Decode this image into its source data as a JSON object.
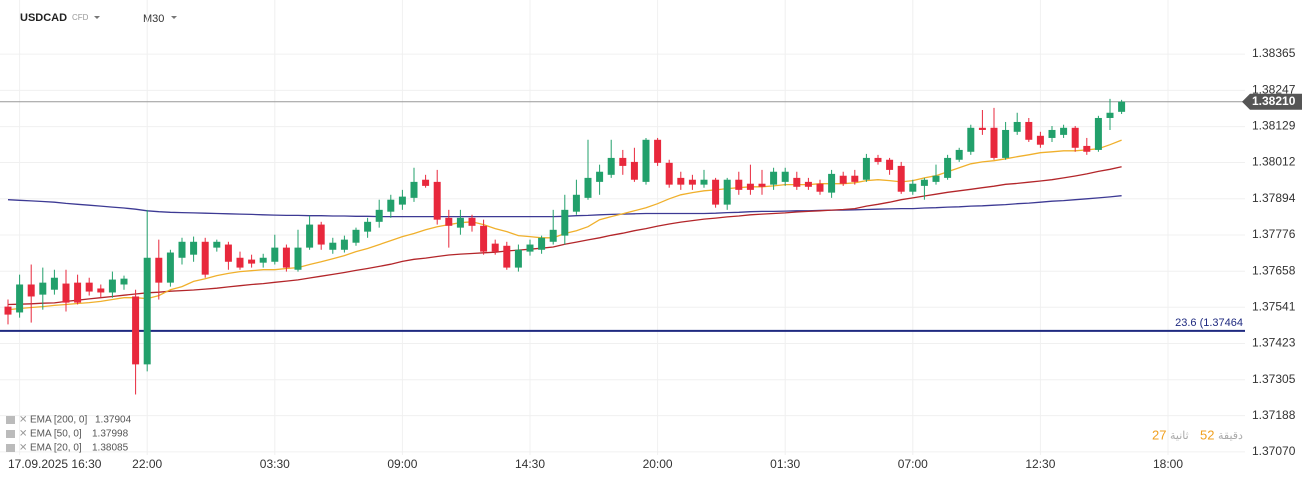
{
  "header": {
    "symbol": "USDCAD",
    "market": "CFD",
    "timeframe": "M30"
  },
  "countdown": {
    "minutes": "27",
    "minutes_unit": "دقيقة",
    "seconds": "52",
    "seconds_unit": "ثانية"
  },
  "chart_data": {
    "type": "candlestick",
    "categories": [
      null,
      "17.09.2025 16:30",
      null,
      null,
      null,
      null,
      null,
      null,
      null,
      null,
      null,
      null,
      "22:00",
      null,
      null,
      null,
      null,
      null,
      null,
      null,
      null,
      null,
      null,
      "03:30",
      null,
      null,
      null,
      null,
      null,
      null,
      null,
      null,
      null,
      null,
      "09:00",
      null,
      null,
      null,
      null,
      null,
      null,
      null,
      null,
      null,
      null,
      "14:30",
      null,
      null,
      null,
      null,
      null,
      null,
      null,
      null,
      null,
      null,
      "20:00",
      null,
      null,
      null,
      null,
      null,
      null,
      null,
      null,
      null,
      null,
      "01:30",
      null,
      null,
      null,
      null,
      null,
      null,
      null,
      null,
      null,
      null,
      "07:00",
      null,
      null,
      null,
      null,
      null,
      null,
      null,
      null,
      null,
      null,
      "12:30",
      null,
      null,
      null,
      null,
      null,
      null,
      null,
      null,
      null,
      null,
      "18:00"
    ],
    "open": [
      1.37543,
      1.37524,
      1.37615,
      1.37582,
      1.37598,
      1.37618,
      1.37621,
      1.37621,
      1.37602,
      1.37589,
      1.37615,
      1.37576,
      1.37355,
      1.37702,
      1.37621,
      1.37702,
      1.37712,
      1.37754,
      1.37735,
      1.37745,
      1.37702,
      1.37696,
      1.37686,
      1.37689,
      1.37735,
      1.37663,
      1.37735,
      1.3781,
      1.37728,
      1.37728,
      1.37751,
      1.37787,
      1.37819,
      1.37852,
      1.37875,
      1.37897,
      1.37956,
      1.37949,
      1.37832,
      1.378,
      1.37832,
      1.37806,
      1.37748,
      1.37741,
      1.3767,
      1.37722,
      1.37728,
      1.37754,
      1.37774,
      1.37852,
      1.37897,
      1.37949,
      1.37972,
      1.38027,
      1.38014,
      1.37949,
      1.38086,
      1.38011,
      1.37962,
      1.37956,
      1.3794,
      1.37956,
      1.37875,
      1.37956,
      1.37943,
      1.37943,
      1.3794,
      1.37949,
      1.37962,
      1.37949,
      1.37943,
      1.37914,
      1.37969,
      1.37969,
      1.37956,
      1.38027,
      1.38021,
      1.38001,
      1.37917,
      1.37936,
      1.37949,
      1.37962,
      1.38021,
      1.38047,
      1.38125,
      1.38125,
      1.38027,
      1.38112,
      1.38144,
      1.38099,
      1.38092,
      1.38102,
      1.38125,
      1.38066,
      1.38053,
      1.38157,
      1.38177,
      null,
      null,
      null,
      null
    ],
    "high": [
      1.37566,
      1.37647,
      1.3768,
      1.3767,
      1.37663,
      1.37663,
      1.37647,
      1.37637,
      1.37615,
      1.37657,
      1.37644,
      1.37598,
      1.37858,
      1.37761,
      1.37728,
      1.37767,
      1.37771,
      1.37767,
      1.37761,
      1.37754,
      1.37722,
      1.37712,
      1.37715,
      1.37777,
      1.37745,
      1.37793,
      1.37839,
      1.37819,
      1.37767,
      1.37774,
      1.378,
      1.37832,
      1.37891,
      1.37907,
      1.37923,
      1.37995,
      1.37972,
      1.37988,
      1.37858,
      1.37858,
      1.37842,
      1.37826,
      1.37761,
      1.37754,
      1.37745,
      1.37761,
      1.37774,
      1.37858,
      1.37907,
      1.37956,
      1.38086,
      1.38005,
      1.38086,
      1.38053,
      1.3806,
      1.38092,
      1.38092,
      1.38021,
      1.37982,
      1.37972,
      1.37988,
      1.37962,
      1.37962,
      1.37982,
      1.38005,
      1.37988,
      1.37995,
      1.37995,
      1.37982,
      1.37962,
      1.37956,
      1.37988,
      1.37982,
      1.37988,
      1.3804,
      1.38037,
      1.38027,
      1.38014,
      1.37956,
      1.37962,
      1.38005,
      1.38037,
      1.3806,
      1.38135,
      1.38183,
      1.3819,
      1.38144,
      1.38174,
      1.38157,
      1.38112,
      1.38131,
      1.38135,
      1.38131,
      1.38092,
      1.38164,
      1.38219,
      1.38216,
      null,
      null,
      null,
      null
    ],
    "low": [
      1.37485,
      1.37507,
      1.37491,
      1.37533,
      1.37582,
      1.37527,
      1.3755,
      1.37579,
      1.37572,
      1.37572,
      1.37598,
      1.37257,
      1.37332,
      1.37566,
      1.37608,
      1.3768,
      1.37689,
      1.37637,
      1.37722,
      1.37663,
      1.37663,
      1.3767,
      1.3767,
      1.3768,
      1.37657,
      1.37657,
      1.37728,
      1.37728,
      1.37715,
      1.37719,
      1.37741,
      1.37767,
      1.378,
      1.37832,
      1.37858,
      1.37884,
      1.3793,
      1.3781,
      1.37735,
      1.37777,
      1.37787,
      1.37712,
      1.37712,
      1.37663,
      1.37657,
      1.37709,
      1.37715,
      1.37745,
      1.37745,
      1.37842,
      1.37891,
      1.37907,
      1.37962,
      1.37972,
      1.37949,
      1.3794,
      1.38001,
      1.3793,
      1.37923,
      1.37923,
      1.3793,
      1.37865,
      1.37858,
      1.37907,
      1.37907,
      1.37907,
      1.37923,
      1.37936,
      1.37923,
      1.37923,
      1.37907,
      1.37897,
      1.37936,
      1.3794,
      1.37949,
      1.38005,
      1.37972,
      1.3791,
      1.37907,
      1.37891,
      1.3794,
      1.37956,
      1.38014,
      1.38037,
      1.38102,
      1.38021,
      1.38021,
      1.38102,
      1.38079,
      1.3806,
      1.38079,
      1.38092,
      1.38047,
      1.38037,
      1.38047,
      1.38118,
      1.3817,
      null,
      null,
      null,
      null
    ],
    "close": [
      1.37517,
      1.37615,
      1.37576,
      1.37621,
      1.37637,
      1.37556,
      1.37556,
      1.37592,
      1.37589,
      1.37631,
      1.37634,
      1.37355,
      1.37702,
      1.37621,
      1.37719,
      1.37754,
      1.37754,
      1.37647,
      1.37754,
      1.37689,
      1.3767,
      1.37683,
      1.37702,
      1.37735,
      1.3767,
      1.37735,
      1.3781,
      1.37745,
      1.37751,
      1.37761,
      1.37793,
      1.37819,
      1.37858,
      1.37891,
      1.37901,
      1.37949,
      1.37936,
      1.37826,
      1.37806,
      1.37832,
      1.37806,
      1.37722,
      1.37722,
      1.3767,
      1.37728,
      1.37745,
      1.37767,
      1.37793,
      1.37858,
      1.37907,
      1.37962,
      1.37982,
      1.38027,
      1.38001,
      1.37956,
      1.38086,
      1.38011,
      1.3794,
      1.3794,
      1.3794,
      1.37956,
      1.37875,
      1.37956,
      1.37923,
      1.37923,
      1.37933,
      1.37982,
      1.37982,
      1.37933,
      1.37933,
      1.37917,
      1.37975,
      1.37943,
      1.37949,
      1.38027,
      1.38014,
      1.37988,
      1.37917,
      1.37943,
      1.37956,
      1.37969,
      1.38027,
      1.38053,
      1.38125,
      1.38118,
      1.38027,
      1.38118,
      1.38144,
      1.38086,
      1.3807,
      1.38118,
      1.38125,
      1.3806,
      1.38047,
      1.38157,
      1.38174,
      1.3821,
      null,
      null,
      null,
      null
    ],
    "up_color": "#22a06b",
    "down_color": "#e8283c",
    "series": [
      {
        "name": "EMA [200, 0]",
        "color": "#3d3a94",
        "values": [
          1.37891,
          1.37889,
          1.37887,
          1.37885,
          1.37883,
          1.37879,
          1.37876,
          1.37873,
          1.3787,
          1.37867,
          1.37864,
          1.3786,
          1.37855,
          1.37852,
          1.3785,
          1.37849,
          1.37848,
          1.37847,
          1.37846,
          1.37845,
          1.37844,
          1.37843,
          1.37842,
          1.37841,
          1.3784,
          1.3784,
          1.37839,
          1.37839,
          1.37838,
          1.37838,
          1.37837,
          1.37837,
          1.37836,
          1.37836,
          1.37836,
          1.37836,
          1.37836,
          1.37836,
          1.37836,
          1.37836,
          1.37836,
          1.37836,
          1.37836,
          1.37836,
          1.37836,
          1.37836,
          1.37836,
          1.37836,
          1.37837,
          1.37839,
          1.3784,
          1.37842,
          1.37843,
          1.37844,
          1.37845,
          1.37846,
          1.37846,
          1.37846,
          1.37846,
          1.37846,
          1.37846,
          1.37847,
          1.37849,
          1.3785,
          1.37852,
          1.37853,
          1.37853,
          1.37854,
          1.37855,
          1.37855,
          1.37856,
          1.37857,
          1.37857,
          1.37858,
          1.37859,
          1.3786,
          1.37861,
          1.37862,
          1.37862,
          1.37864,
          1.37865,
          1.37867,
          1.37868,
          1.3787,
          1.37871,
          1.37873,
          1.37875,
          1.37878,
          1.3788,
          1.37883,
          1.37886,
          1.37888,
          1.37891,
          1.37894,
          1.37897,
          1.379,
          1.37904,
          null,
          null,
          null,
          null
        ]
      },
      {
        "name": "EMA [50, 0]",
        "color": "#b3262a",
        "values": [
          1.3755,
          1.37551,
          1.37552,
          1.37554,
          1.37555,
          1.3756,
          1.37564,
          1.37568,
          1.37572,
          1.37576,
          1.3758,
          1.37584,
          1.37588,
          1.3759,
          1.37593,
          1.37595,
          1.37597,
          1.376,
          1.37603,
          1.37607,
          1.37611,
          1.37615,
          1.37618,
          1.37622,
          1.37626,
          1.3763,
          1.37636,
          1.37642,
          1.37648,
          1.37654,
          1.37661,
          1.37667,
          1.37674,
          1.37681,
          1.3769,
          1.37697,
          1.37701,
          1.37706,
          1.37711,
          1.37714,
          1.37716,
          1.37718,
          1.3772,
          1.37724,
          1.37727,
          1.3773,
          1.37733,
          1.37737,
          1.37746,
          1.37753,
          1.3776,
          1.37767,
          1.37775,
          1.37782,
          1.3779,
          1.37797,
          1.37805,
          1.37812,
          1.37818,
          1.37823,
          1.37828,
          1.37831,
          1.37835,
          1.37838,
          1.37842,
          1.37844,
          1.37846,
          1.37848,
          1.37851,
          1.37853,
          1.37855,
          1.37857,
          1.37859,
          1.37862,
          1.3787,
          1.37876,
          1.37883,
          1.37891,
          1.37897,
          1.37903,
          1.37909,
          1.37915,
          1.3792,
          1.37925,
          1.3793,
          1.37935,
          1.37941,
          1.37944,
          1.37948,
          1.37952,
          1.37956,
          1.37962,
          1.37968,
          1.37975,
          1.37983,
          1.3799,
          1.37998,
          null,
          null,
          null,
          null
        ]
      },
      {
        "name": "EMA [20, 0]",
        "color": "#f0b02c",
        "values": [
          1.37533,
          1.37537,
          1.3754,
          1.37543,
          1.37547,
          1.3755,
          1.37553,
          1.37556,
          1.3756,
          1.37566,
          1.37572,
          1.37572,
          1.37569,
          1.37579,
          1.37598,
          1.37608,
          1.37625,
          1.37634,
          1.37644,
          1.37651,
          1.37657,
          1.3766,
          1.37663,
          1.37663,
          1.37667,
          1.3767,
          1.3768,
          1.37689,
          1.37699,
          1.37709,
          1.37722,
          1.37732,
          1.37745,
          1.37758,
          1.37771,
          1.37781,
          1.37793,
          1.37803,
          1.3781,
          1.37816,
          1.37819,
          1.3781,
          1.37797,
          1.37787,
          1.37774,
          1.37771,
          1.37767,
          1.37767,
          1.37781,
          1.3779,
          1.37803,
          1.37826,
          1.37836,
          1.37845,
          1.37855,
          1.37865,
          1.37878,
          1.37894,
          1.37907,
          1.37914,
          1.3792,
          1.37923,
          1.37927,
          1.3793,
          1.37933,
          1.37933,
          1.37936,
          1.3794,
          1.3794,
          1.3794,
          1.37943,
          1.37943,
          1.37943,
          1.37946,
          1.37953,
          1.37956,
          1.37953,
          1.37949,
          1.37953,
          1.37962,
          1.37969,
          1.37982,
          1.37995,
          1.38008,
          1.38014,
          1.38018,
          1.38024,
          1.38031,
          1.38037,
          1.38044,
          1.38047,
          1.3805,
          1.3805,
          1.38053,
          1.38057,
          1.3807,
          1.38085,
          null,
          null,
          null,
          null
        ]
      }
    ],
    "ylim": [
      1.3706,
      1.38541
    ],
    "yticks": [
      1.38365,
      1.38247,
      1.38129,
      1.38012,
      1.37894,
      1.37776,
      1.37658,
      1.37541,
      1.37423,
      1.37305,
      1.37188,
      {
        "value": 1.3707,
        "label": "1.37070"
      }
    ],
    "grid": true,
    "last_price": {
      "value": 1.3821,
      "label": "1.38210"
    },
    "fib_level": {
      "value": 1.37464,
      "label": "23.6 (1.37464"
    }
  }
}
